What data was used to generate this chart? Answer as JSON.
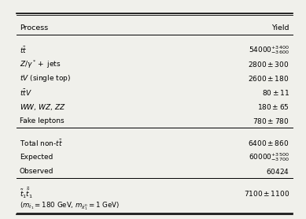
{
  "rows": [
    {
      "process": "$t\\bar{t}$",
      "yield": "$54000^{+3400}_{-3600}$"
    },
    {
      "process": "$Z/\\gamma^* +$ jets",
      "yield": "$2800 \\pm 300$"
    },
    {
      "process": "$tV$ (single top)",
      "yield": "$2600 \\pm 180$"
    },
    {
      "process": "$t\\bar{t}V$",
      "yield": "$80 \\pm 11$"
    },
    {
      "process": "$WW$, $WZ$, $ZZ$",
      "yield": "$180 \\pm 65$"
    },
    {
      "process": "Fake leptons",
      "yield": "$780 \\pm 780$"
    }
  ],
  "summary_rows": [
    {
      "process": "Total non-$t\\bar{t}$",
      "yield": "$6400 \\pm 860$"
    },
    {
      "process": "Expected",
      "yield": "$60000^{+3500}_{-3700}$"
    },
    {
      "process": "Observed",
      "yield": "$60424$"
    }
  ],
  "signal_process": "$\\tilde{t}_1\\bar{\\tilde{t}}_1$",
  "signal_yield": "$7100 \\pm 1100$",
  "signal_note": "$(m_{\\tilde{t}_1} = 180$ GeV, $m_{\\tilde{\\chi}^0_1} = 1$ GeV$)$",
  "col_headers": [
    "Process",
    "Yield"
  ],
  "bg_color": "#f0f0eb",
  "fig_width": 3.69,
  "fig_height": 2.5,
  "fs": 6.5,
  "fs_header": 6.8
}
